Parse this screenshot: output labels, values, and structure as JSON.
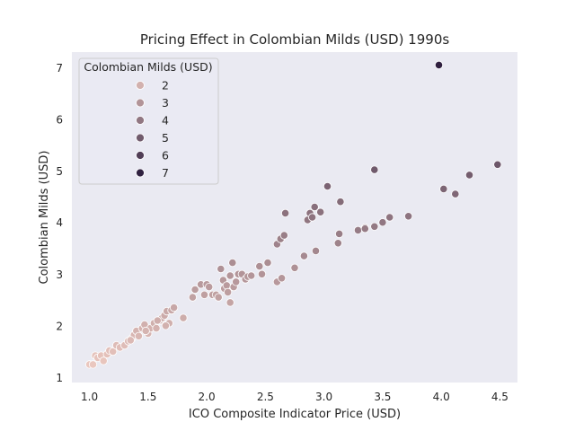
{
  "chart_data": {
    "type": "scatter",
    "title": "Pricing Effect in Colombian Milds (USD) 1990s",
    "xlabel": "ICO Composite Indicator Price (USD)",
    "ylabel": "Colombian Milds (USD)",
    "xlim": [
      0.85,
      4.65
    ],
    "ylim": [
      0.9,
      7.3
    ],
    "xticks": [
      "1.0",
      "1.5",
      "2.0",
      "2.5",
      "3.0",
      "3.5",
      "4.0",
      "4.5"
    ],
    "yticks": [
      "1",
      "2",
      "3",
      "4",
      "5",
      "6",
      "7"
    ],
    "grid": false,
    "background": "#eaeaf2",
    "hue_range": [
      1.2,
      7.1
    ],
    "color_light": "#ecc8c0",
    "color_dark": "#2d1e3e",
    "legend": {
      "title": "Colombian Milds (USD)",
      "placement": "top-left",
      "entries": [
        {
          "label": "2",
          "hue": 2
        },
        {
          "label": "3",
          "hue": 3
        },
        {
          "label": "4",
          "hue": 4
        },
        {
          "label": "5",
          "hue": 5
        },
        {
          "label": "6",
          "hue": 6
        },
        {
          "label": "7",
          "hue": 7
        }
      ]
    },
    "points": [
      [
        1.0,
        1.25
      ],
      [
        1.03,
        1.25
      ],
      [
        1.05,
        1.42
      ],
      [
        1.07,
        1.38
      ],
      [
        1.1,
        1.42
      ],
      [
        1.12,
        1.32
      ],
      [
        1.15,
        1.45
      ],
      [
        1.17,
        1.52
      ],
      [
        1.2,
        1.5
      ],
      [
        1.23,
        1.62
      ],
      [
        1.26,
        1.58
      ],
      [
        1.3,
        1.62
      ],
      [
        1.33,
        1.7
      ],
      [
        1.36,
        1.75
      ],
      [
        1.38,
        1.82
      ],
      [
        1.4,
        1.9
      ],
      [
        1.42,
        1.8
      ],
      [
        1.45,
        1.95
      ],
      [
        1.47,
        2.02
      ],
      [
        1.5,
        1.85
      ],
      [
        1.52,
        1.95
      ],
      [
        1.55,
        2.05
      ],
      [
        1.57,
        1.95
      ],
      [
        1.6,
        2.1
      ],
      [
        1.62,
        2.15
      ],
      [
        1.64,
        2.2
      ],
      [
        1.66,
        2.28
      ],
      [
        1.68,
        2.05
      ],
      [
        1.7,
        2.3
      ],
      [
        1.72,
        2.35
      ],
      [
        1.65,
        2.0
      ],
      [
        1.58,
        2.1
      ],
      [
        1.48,
        1.9
      ],
      [
        1.35,
        1.72
      ],
      [
        1.8,
        2.15
      ],
      [
        1.88,
        2.55
      ],
      [
        1.9,
        2.7
      ],
      [
        1.95,
        2.8
      ],
      [
        1.98,
        2.6
      ],
      [
        2.0,
        2.8
      ],
      [
        2.02,
        2.75
      ],
      [
        2.05,
        2.6
      ],
      [
        2.08,
        2.6
      ],
      [
        2.1,
        2.55
      ],
      [
        2.12,
        3.1
      ],
      [
        2.14,
        2.88
      ],
      [
        2.15,
        2.72
      ],
      [
        2.17,
        2.78
      ],
      [
        2.18,
        2.65
      ],
      [
        2.2,
        2.45
      ],
      [
        2.22,
        3.22
      ],
      [
        2.23,
        2.75
      ],
      [
        2.25,
        2.85
      ],
      [
        2.2,
        2.97
      ],
      [
        2.27,
        3.0
      ],
      [
        2.3,
        3.0
      ],
      [
        2.33,
        2.9
      ],
      [
        2.35,
        2.95
      ],
      [
        2.38,
        2.97
      ],
      [
        2.45,
        3.15
      ],
      [
        2.47,
        3.0
      ],
      [
        2.52,
        3.22
      ],
      [
        2.6,
        2.85
      ],
      [
        2.64,
        2.92
      ],
      [
        2.6,
        3.58
      ],
      [
        2.63,
        3.68
      ],
      [
        2.66,
        3.75
      ],
      [
        2.67,
        4.18
      ],
      [
        2.75,
        3.12
      ],
      [
        2.83,
        3.35
      ],
      [
        2.86,
        4.05
      ],
      [
        2.88,
        4.18
      ],
      [
        2.9,
        4.1
      ],
      [
        2.92,
        4.3
      ],
      [
        2.93,
        3.45
      ],
      [
        2.97,
        4.2
      ],
      [
        3.03,
        4.7
      ],
      [
        3.12,
        3.6
      ],
      [
        3.13,
        3.78
      ],
      [
        3.14,
        4.4
      ],
      [
        3.29,
        3.85
      ],
      [
        3.35,
        3.9
      ],
      [
        3.35,
        3.88
      ],
      [
        3.43,
        3.92
      ],
      [
        3.5,
        4.0
      ],
      [
        3.56,
        4.1
      ],
      [
        3.72,
        4.12
      ],
      [
        3.43,
        5.02
      ],
      [
        4.02,
        4.65
      ],
      [
        4.12,
        4.55
      ],
      [
        4.24,
        4.92
      ],
      [
        4.48,
        5.12
      ],
      [
        3.98,
        7.05
      ]
    ]
  }
}
